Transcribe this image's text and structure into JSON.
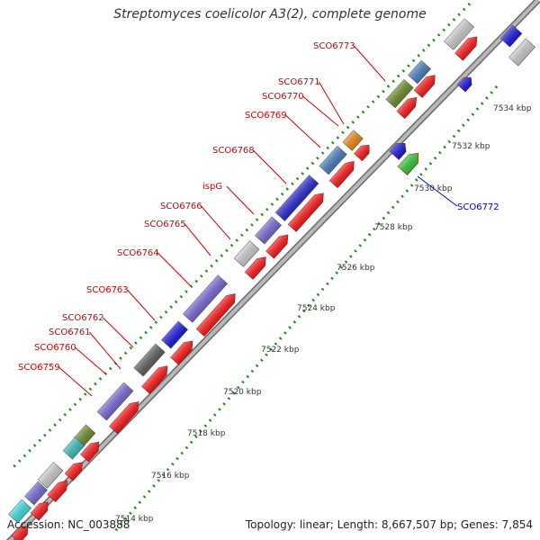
{
  "title": "Streptomyces coelicolor A3(2), complete genome",
  "footer": {
    "accession": "Accession: NC_003888",
    "summary": "Topology: linear; Length: 8,667,507 bp; Genes: 7,854"
  },
  "colors": {
    "backbone": "#8a8a8a",
    "ruler_dots": "#1a8a1a",
    "label_red": "#d40000",
    "label_blue": "#0000cc",
    "tick_text": "#333333"
  },
  "ruler": [
    {
      "label": "7534 kbp"
    },
    {
      "label": "7532 kbp"
    },
    {
      "label": "7530 kbp"
    },
    {
      "label": "7528 kbp"
    },
    {
      "label": "7526 kbp"
    },
    {
      "label": "7524 kbp"
    },
    {
      "label": "7522 kbp"
    },
    {
      "label": "7520 kbp"
    },
    {
      "label": "7518 kbp"
    },
    {
      "label": "7516 kbp"
    },
    {
      "label": "7514 kbp"
    }
  ],
  "gene_labels": [
    {
      "name": "SCO6773",
      "color": "red"
    },
    {
      "name": "SCO6771",
      "color": "red"
    },
    {
      "name": "SCO6770",
      "color": "red"
    },
    {
      "name": "SCO6769",
      "color": "red"
    },
    {
      "name": "SCO6768",
      "color": "red"
    },
    {
      "name": "ispG",
      "color": "red"
    },
    {
      "name": "SCO6766",
      "color": "red"
    },
    {
      "name": "SCO6765",
      "color": "red"
    },
    {
      "name": "SCO6764",
      "color": "red"
    },
    {
      "name": "SCO6763",
      "color": "red"
    },
    {
      "name": "SCO6762",
      "color": "red"
    },
    {
      "name": "SCO6761",
      "color": "red"
    },
    {
      "name": "SCO6760",
      "color": "red"
    },
    {
      "name": "SCO6759",
      "color": "red"
    },
    {
      "name": "SCO6772",
      "color": "blue"
    }
  ]
}
